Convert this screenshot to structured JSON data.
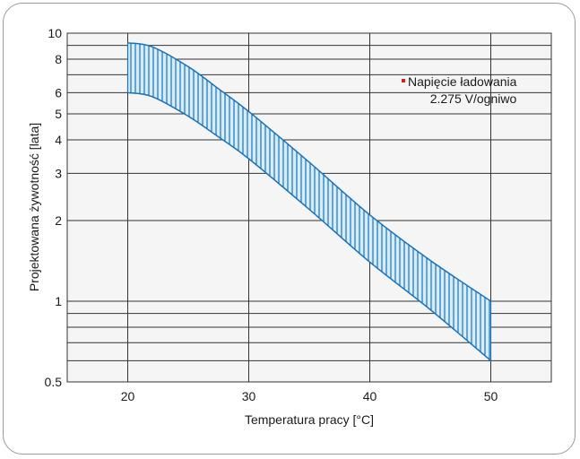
{
  "chart_data": {
    "type": "area",
    "xlabel": "Temperatura pracy [°C]",
    "ylabel": "Projektowana żywotność [lata]",
    "xlim": [
      15,
      55
    ],
    "ylim": [
      0.5,
      10
    ],
    "y_scale": "log",
    "x_ticks": [
      "20",
      "30",
      "40",
      "50"
    ],
    "y_ticks": [
      "0.5",
      "1",
      "2",
      "3",
      "4",
      "5",
      "6",
      "8",
      "10"
    ],
    "grid": true,
    "annotation": [
      "Napięcie ładowania",
      "2.275 V/ogniwo"
    ],
    "series": [
      {
        "band": "upper",
        "x": [
          20,
          22,
          25,
          27.5,
          30,
          35,
          40,
          45,
          50
        ],
        "y": [
          9.2,
          8.9,
          7.5,
          6.2,
          5.1,
          3.3,
          2.1,
          1.42,
          1.0
        ]
      },
      {
        "band": "lower",
        "x": [
          20,
          22,
          25,
          27.5,
          30,
          35,
          40,
          45,
          50
        ],
        "y": [
          6.0,
          5.8,
          4.9,
          4.1,
          3.4,
          2.2,
          1.4,
          0.93,
          0.6
        ]
      }
    ],
    "colors": {
      "band_stroke": "#1a73b8",
      "band_hatch": "#1a73b8",
      "band_fill": "#d6ecf8",
      "marker": "#cc2222"
    }
  }
}
